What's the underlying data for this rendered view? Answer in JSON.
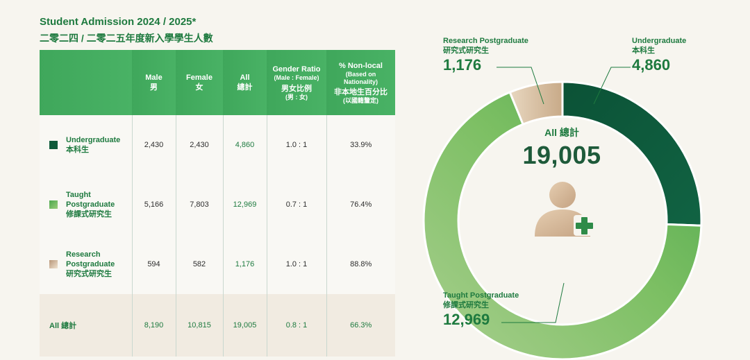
{
  "header": {
    "title_en": "Student Admission 2024 / 2025*",
    "title_zh": "二零二四 / 二零二五年度新入學學生人數"
  },
  "table": {
    "columns": {
      "male": {
        "en": "Male",
        "zh": "男"
      },
      "female": {
        "en": "Female",
        "zh": "女"
      },
      "all": {
        "en": "All",
        "zh": "總計"
      },
      "ratio": {
        "en": "Gender Ratio",
        "sub": "(Male : Female)",
        "zh": "男女比例",
        "zh_sub": "(男 : 女)"
      },
      "nonlocal": {
        "en": "% Non-local",
        "sub1": "(Based on",
        "sub2": "Nationality)",
        "zh": "非本地生百分比",
        "zh_sub": "(以國籍釐定)"
      }
    },
    "rows": [
      {
        "en": "Undergraduate",
        "zh": "本科生",
        "male": "2,430",
        "female": "2,430",
        "all": "4,860",
        "ratio": "1.0 : 1",
        "nonlocal": "33.9%"
      },
      {
        "en1": "Taught",
        "en2": "Postgraduate",
        "zh": "修課式研究生",
        "male": "5,166",
        "female": "7,803",
        "all": "12,969",
        "ratio": "0.7 : 1",
        "nonlocal": "76.4%"
      },
      {
        "en1": "Research",
        "en2": "Postgraduate",
        "zh": "研究式研究生",
        "male": "594",
        "female": "582",
        "all": "1,176",
        "ratio": "1.0 : 1",
        "nonlocal": "88.8%"
      }
    ],
    "total": {
      "label": "All 總計",
      "male": "8,190",
      "female": "10,815",
      "all": "19,005",
      "ratio": "0.8 : 1",
      "nonlocal": "66.3%"
    }
  },
  "colors": {
    "undergraduate": "#0e5a3a",
    "taught": "#6cb85e",
    "research": "#d9c3a5",
    "header_green": "#46ad61",
    "text_green": "#1e7a3f"
  },
  "chart_data": {
    "type": "pie",
    "variant": "donut",
    "title": "All 總計",
    "total_label": "19,005",
    "total": 19005,
    "categories": [
      "Undergraduate",
      "Taught Postgraduate",
      "Research Postgraduate"
    ],
    "values": [
      4860,
      12969,
      1176
    ],
    "slices": [
      {
        "name": "Undergraduate",
        "zh": "本科生",
        "value": 4860,
        "label": "4,860"
      },
      {
        "name": "Taught Postgraduate",
        "zh": "修課式研究生",
        "value": 12969,
        "label": "12,969"
      },
      {
        "name": "Research Postgraduate",
        "zh": "研究式研究生",
        "value": 1176,
        "label": "1,176"
      }
    ]
  }
}
